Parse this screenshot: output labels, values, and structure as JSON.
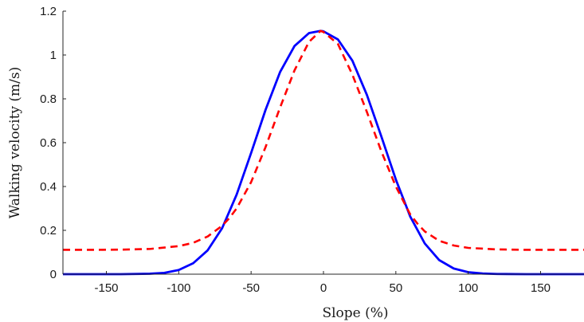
{
  "chart_data": {
    "type": "line",
    "title": "",
    "xlabel": "Slope (%)",
    "ylabel": "Walking velocity (m/s)",
    "xlim": [
      -180,
      180
    ],
    "ylim": [
      0,
      1.2
    ],
    "xticks": [
      -150,
      -100,
      -50,
      0,
      50,
      100,
      150
    ],
    "xtick_labels": [
      "-150",
      "-100",
      "-50",
      "0",
      "50",
      "100",
      "150"
    ],
    "yticks": [
      0,
      0.2,
      0.4,
      0.6,
      0.8,
      1.0,
      1.2
    ],
    "ytick_labels": [
      "0",
      "0.2",
      "0.4",
      "0.6",
      "0.8",
      "1",
      "1.2"
    ],
    "grid": false,
    "legend": "none",
    "series": [
      {
        "color": "#0000ff",
        "line_style": "solid",
        "x": [
          -180,
          -160,
          -140,
          -120,
          -110,
          -100,
          -90,
          -80,
          -70,
          -60,
          -50,
          -40,
          -30,
          -20,
          -10,
          -2,
          0,
          10,
          20,
          30,
          40,
          50,
          60,
          70,
          80,
          90,
          100,
          110,
          120,
          140,
          160,
          180
        ],
        "y": [
          0.0,
          0.0,
          0.0,
          0.002,
          0.006,
          0.019,
          0.05,
          0.109,
          0.21,
          0.363,
          0.553,
          0.75,
          0.922,
          1.041,
          1.1,
          1.11,
          1.108,
          1.071,
          0.974,
          0.818,
          0.628,
          0.432,
          0.262,
          0.14,
          0.064,
          0.026,
          0.009,
          0.003,
          0.001,
          0.0,
          0.0,
          0.0
        ]
      },
      {
        "color": "#ff0000",
        "line_style": "dashed",
        "x": [
          -180,
          -160,
          -140,
          -120,
          -100,
          -90,
          -80,
          -70,
          -65,
          -60,
          -50,
          -40,
          -30,
          -20,
          -10,
          -2,
          0,
          10,
          20,
          30,
          40,
          50,
          60,
          65,
          70,
          80,
          90,
          100,
          120,
          140,
          160,
          180
        ],
        "y": [
          0.111,
          0.111,
          0.112,
          0.115,
          0.128,
          0.143,
          0.172,
          0.221,
          0.256,
          0.3,
          0.42,
          0.58,
          0.76,
          0.93,
          1.06,
          1.11,
          1.105,
          1.05,
          0.91,
          0.74,
          0.56,
          0.4,
          0.272,
          0.23,
          0.195,
          0.152,
          0.131,
          0.12,
          0.113,
          0.111,
          0.111,
          0.111
        ]
      }
    ]
  }
}
